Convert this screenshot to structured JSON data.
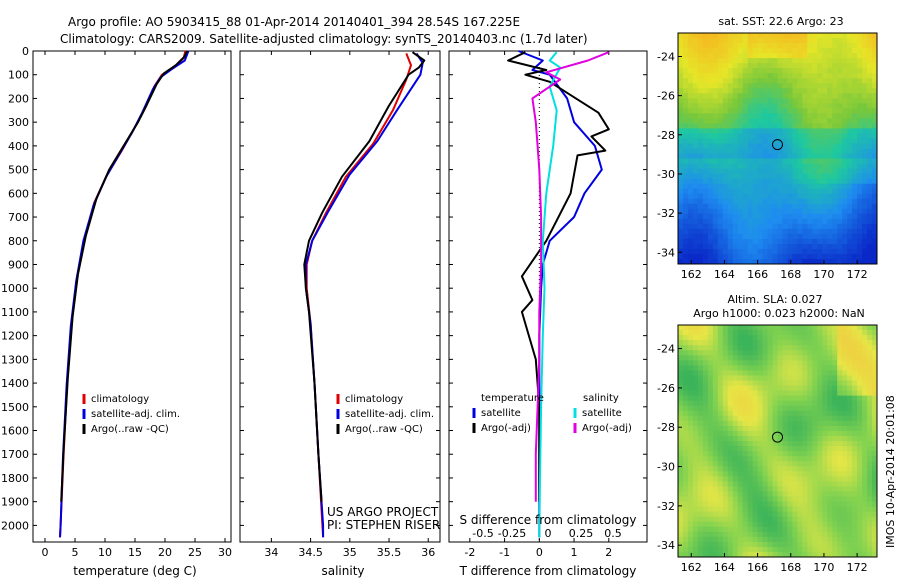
{
  "header": {
    "line1": "Argo profile: AO 5903415_88 01-Apr-2014 20140401_394 28.54S 167.225E",
    "line2": "Climatology: CARS2009. Satellite-adjusted climatology: synTS_20140403.nc (1.7d later)"
  },
  "colors": {
    "climatology": "#e00000",
    "satellite": "#0000e0",
    "argo": "#000000",
    "sal_satellite": "#00e0e0",
    "sal_argo": "#e000e0"
  },
  "chart_data": [
    {
      "type": "line",
      "id": "temperature",
      "xlabel": "temperature (deg C)",
      "xlim": [
        -2,
        31
      ],
      "ylim": [
        2070,
        0
      ],
      "xticks": [
        0,
        5,
        10,
        15,
        20,
        25,
        30
      ],
      "yticks": [
        0,
        100,
        200,
        300,
        400,
        500,
        600,
        700,
        800,
        900,
        1000,
        1100,
        1200,
        1300,
        1400,
        1500,
        1600,
        1700,
        1800,
        1900,
        2000
      ],
      "legend": [
        "climatology",
        "satellite-adj. clim.",
        "Argo(..raw -QC)"
      ],
      "series": [
        {
          "name": "climatology",
          "color": "#e00000",
          "points": [
            [
              23.4,
              0
            ],
            [
              23.1,
              30
            ],
            [
              21.5,
              70
            ],
            [
              19.5,
              100
            ],
            [
              18.2,
              150
            ],
            [
              16.5,
              250
            ],
            [
              15.0,
              320
            ],
            [
              12.8,
              420
            ],
            [
              10.4,
              520
            ],
            [
              8.2,
              640
            ],
            [
              6.5,
              800
            ],
            [
              5.3,
              960
            ],
            [
              4.4,
              1150
            ],
            [
              3.7,
              1400
            ],
            [
              3.1,
              1700
            ],
            [
              2.6,
              2000
            ],
            [
              2.5,
              2050
            ]
          ]
        },
        {
          "name": "satellite-adj. clim.",
          "color": "#0000e0",
          "points": [
            [
              23.9,
              0
            ],
            [
              23.3,
              40
            ],
            [
              21.2,
              75
            ],
            [
              19.3,
              110
            ],
            [
              18.0,
              160
            ],
            [
              16.2,
              260
            ],
            [
              14.6,
              340
            ],
            [
              12.5,
              430
            ],
            [
              10.2,
              530
            ],
            [
              8.1,
              650
            ],
            [
              6.4,
              800
            ],
            [
              5.2,
              970
            ],
            [
              4.3,
              1160
            ],
            [
              3.6,
              1410
            ],
            [
              3.0,
              1710
            ],
            [
              2.6,
              2000
            ],
            [
              2.5,
              2050
            ]
          ]
        },
        {
          "name": "Argo(..raw -QC)",
          "color": "#000000",
          "points": [
            [
              23.7,
              0
            ],
            [
              23.2,
              25
            ],
            [
              21.8,
              60
            ],
            [
              19.8,
              95
            ],
            [
              18.6,
              140
            ],
            [
              16.9,
              230
            ],
            [
              15.5,
              300
            ],
            [
              13.1,
              400
            ],
            [
              10.7,
              500
            ],
            [
              8.6,
              620
            ],
            [
              6.8,
              780
            ],
            [
              5.5,
              940
            ],
            [
              4.6,
              1120
            ],
            [
              3.8,
              1380
            ],
            [
              3.1,
              1680
            ],
            [
              2.7,
              1900
            ]
          ]
        }
      ]
    },
    {
      "type": "line",
      "id": "salinity",
      "xlabel": "salinity",
      "xlim": [
        33.6,
        36.15
      ],
      "ylim": [
        2070,
        0
      ],
      "xticks": [
        34,
        34.5,
        35,
        35.5,
        36
      ],
      "xticklabels": [
        "34",
        "34.5",
        "35",
        "35.5",
        "36"
      ],
      "legend": [
        "climatology",
        "satellite-adj. clim.",
        "Argo(..raw -QC)"
      ],
      "annotations": [
        "US ARGO PROJECT",
        "PI: STEPHEN RISER"
      ],
      "series": [
        {
          "name": "climatology",
          "color": "#e00000",
          "points": [
            [
              35.72,
              10
            ],
            [
              35.78,
              60
            ],
            [
              35.72,
              120
            ],
            [
              35.55,
              250
            ],
            [
              35.3,
              390
            ],
            [
              34.95,
              530
            ],
            [
              34.7,
              680
            ],
            [
              34.52,
              800
            ],
            [
              34.45,
              900
            ],
            [
              34.45,
              1000
            ],
            [
              34.5,
              1150
            ],
            [
              34.55,
              1400
            ],
            [
              34.6,
              1700
            ],
            [
              34.65,
              2000
            ],
            [
              34.66,
              2050
            ]
          ]
        },
        {
          "name": "satellite-adj. clim.",
          "color": "#0000e0",
          "points": [
            [
              35.85,
              10
            ],
            [
              35.93,
              50
            ],
            [
              35.9,
              100
            ],
            [
              35.6,
              250
            ],
            [
              35.35,
              380
            ],
            [
              35.0,
              520
            ],
            [
              34.72,
              680
            ],
            [
              34.52,
              800
            ],
            [
              34.44,
              900
            ],
            [
              34.44,
              1000
            ],
            [
              34.5,
              1150
            ],
            [
              34.55,
              1400
            ],
            [
              34.6,
              1700
            ],
            [
              34.66,
              2000
            ],
            [
              34.66,
              2050
            ]
          ]
        },
        {
          "name": "Argo(..raw -QC)",
          "color": "#000000",
          "points": [
            [
              35.8,
              5
            ],
            [
              35.95,
              40
            ],
            [
              35.88,
              70
            ],
            [
              35.75,
              100
            ],
            [
              35.5,
              230
            ],
            [
              35.25,
              380
            ],
            [
              34.9,
              530
            ],
            [
              34.65,
              680
            ],
            [
              34.48,
              800
            ],
            [
              34.42,
              900
            ],
            [
              34.44,
              1000
            ],
            [
              34.48,
              1100
            ],
            [
              34.55,
              1400
            ],
            [
              34.6,
              1700
            ],
            [
              34.64,
              1900
            ]
          ]
        }
      ]
    },
    {
      "type": "line",
      "id": "difference",
      "xlabel": "T difference from climatology",
      "xlabel_top": "S difference from climatology",
      "xlim": [
        -2.6,
        3.1
      ],
      "ylim": [
        2070,
        0
      ],
      "xticks": [
        -2,
        -1,
        0,
        1,
        2
      ],
      "s_ticklabels": [
        "-0.5",
        "-0.25",
        "0",
        "0.25",
        "0.5"
      ],
      "legend_temperature": {
        "title": "temperature",
        "items": [
          "satellite",
          "Argo(-adj)"
        ]
      },
      "legend_salinity": {
        "title": "salinity",
        "items": [
          "satellite",
          "Argo(-adj)"
        ]
      },
      "series": [
        {
          "name": "satellite",
          "group": "temperature",
          "color": "#0000e0",
          "points": [
            [
              -0.6,
              0
            ],
            [
              0.1,
              40
            ],
            [
              -0.2,
              80
            ],
            [
              0.3,
              100
            ],
            [
              0.8,
              200
            ],
            [
              1.0,
              300
            ],
            [
              1.6,
              400
            ],
            [
              1.8,
              500
            ],
            [
              1.3,
              600
            ],
            [
              1.0,
              700
            ],
            [
              0.3,
              800
            ],
            [
              0.1,
              900
            ],
            [
              0.05,
              1000
            ],
            [
              0,
              1200
            ],
            [
              0,
              1400
            ],
            [
              0,
              1600
            ],
            [
              0,
              2050
            ]
          ]
        },
        {
          "name": "Argo(-adj)",
          "group": "temperature",
          "color": "#000000",
          "points": [
            [
              -0.4,
              5
            ],
            [
              -0.9,
              40
            ],
            [
              0.2,
              80
            ],
            [
              -0.4,
              100
            ],
            [
              0.3,
              130
            ],
            [
              1.7,
              260
            ],
            [
              2.0,
              330
            ],
            [
              1.5,
              360
            ],
            [
              1.9,
              420
            ],
            [
              1.1,
              440
            ],
            [
              0.9,
              600
            ],
            [
              0.2,
              800
            ],
            [
              -0.5,
              950
            ],
            [
              -0.2,
              1050
            ],
            [
              -0.5,
              1100
            ],
            [
              -0.1,
              1300
            ],
            [
              0,
              1500
            ],
            [
              0,
              1900
            ]
          ]
        },
        {
          "name": "satellite",
          "group": "salinity",
          "color": "#00e0e0",
          "points": [
            [
              0.5,
              5
            ],
            [
              0.3,
              40
            ],
            [
              0.6,
              70
            ],
            [
              0.3,
              150
            ],
            [
              0.5,
              250
            ],
            [
              0.4,
              400
            ],
            [
              0.2,
              600
            ],
            [
              0.1,
              800
            ],
            [
              0.15,
              1000
            ],
            [
              0.1,
              1200
            ],
            [
              0.05,
              1500
            ],
            [
              0.02,
              1800
            ],
            [
              0,
              2050
            ]
          ]
        },
        {
          "name": "Argo(-adj)",
          "group": "salinity",
          "color": "#e000e0",
          "points": [
            [
              2.0,
              5
            ],
            [
              1.4,
              40
            ],
            [
              0.2,
              90
            ],
            [
              0.6,
              120
            ],
            [
              -0.2,
              200
            ],
            [
              -0.1,
              300
            ],
            [
              -0.05,
              400
            ],
            [
              0,
              500
            ],
            [
              0.05,
              700
            ],
            [
              0.05,
              900
            ],
            [
              0.0,
              1100
            ],
            [
              0.0,
              1300
            ],
            [
              -0.05,
              1500
            ],
            [
              -0.1,
              1700
            ],
            [
              -0.1,
              1900
            ]
          ]
        }
      ]
    },
    {
      "type": "heatmap",
      "id": "sst_map",
      "title": "sat. SST: 22.6 Argo: 23",
      "xlim": [
        161.2,
        173.2
      ],
      "ylim": [
        -34.6,
        -22.8
      ],
      "xticks": [
        162,
        164,
        166,
        168,
        170,
        172
      ],
      "yticks": [
        -24,
        -26,
        -28,
        -30,
        -32,
        -34
      ],
      "marker": [
        167.2,
        -28.5
      ]
    },
    {
      "type": "heatmap",
      "id": "sla_map",
      "title": "Altim. SLA: 0.027",
      "subtitle": "Argo h1000: 0.023 h2000: NaN",
      "xlim": [
        161.2,
        173.2
      ],
      "ylim": [
        -34.6,
        -22.8
      ],
      "xticks": [
        162,
        164,
        166,
        168,
        170,
        172
      ],
      "yticks": [
        -24,
        -26,
        -28,
        -30,
        -32,
        -34
      ],
      "marker": [
        167.2,
        -28.5
      ]
    }
  ],
  "footer": {
    "watermark": "IMOS 10-Apr-2014 20:01:08"
  }
}
